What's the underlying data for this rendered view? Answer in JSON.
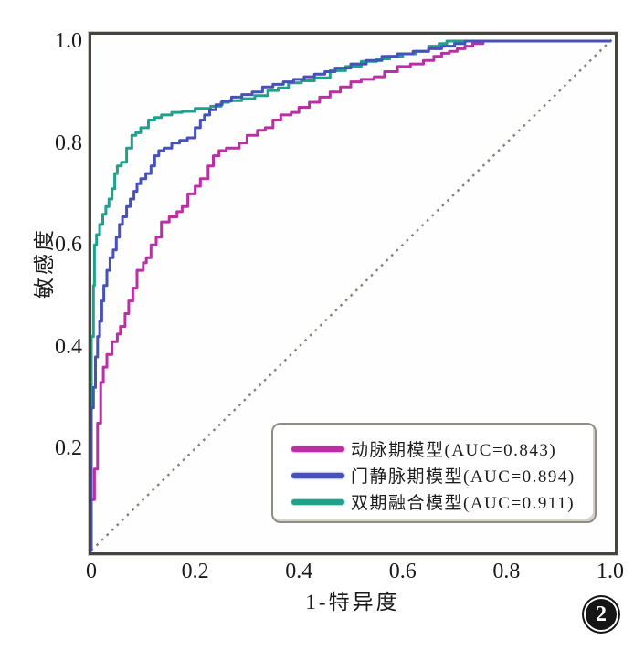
{
  "figure": {
    "number": "2"
  },
  "chart_data": {
    "type": "line",
    "subtype": "roc-curve",
    "title": "",
    "xlabel": "1-特异度",
    "ylabel": "敏感度",
    "xlim": [
      0,
      1.02
    ],
    "ylim": [
      0,
      1.02
    ],
    "grid": false,
    "legend_position": "inside-lower-right",
    "colors": {
      "frame": "#454441",
      "diagonal": "#8b8078",
      "background": "#ffffff",
      "tick_text": "#1a1a1a"
    },
    "x_ticks": [
      {
        "value": 0,
        "label": "0"
      },
      {
        "value": 0.2,
        "label": "0.2"
      },
      {
        "value": 0.4,
        "label": "0.4"
      },
      {
        "value": 0.6,
        "label": "0.6"
      },
      {
        "value": 0.8,
        "label": "0.8"
      },
      {
        "value": 1.0,
        "label": "1.0"
      }
    ],
    "y_ticks": [
      {
        "value": 0.2,
        "label": "0.2"
      },
      {
        "value": 0.4,
        "label": "0.4"
      },
      {
        "value": 0.6,
        "label": "0.6"
      },
      {
        "value": 0.8,
        "label": "0.8"
      },
      {
        "value": 1.0,
        "label": "1.0"
      }
    ],
    "reference_line": {
      "style": "dotted",
      "from": [
        0,
        0
      ],
      "to": [
        1,
        1
      ]
    },
    "draw_order": [
      0,
      2,
      1
    ],
    "series": [
      {
        "key": "arterial",
        "name": "动脉期模型(AUC=0.843)",
        "auc": 0.843,
        "color": "#bb2fa4",
        "points": [
          [
            0,
            0
          ],
          [
            0.006,
            0.1
          ],
          [
            0.012,
            0.16
          ],
          [
            0.018,
            0.25
          ],
          [
            0.023,
            0.33
          ],
          [
            0.03,
            0.36
          ],
          [
            0.04,
            0.385
          ],
          [
            0.05,
            0.41
          ],
          [
            0.056,
            0.425
          ],
          [
            0.065,
            0.44
          ],
          [
            0.072,
            0.465
          ],
          [
            0.08,
            0.49
          ],
          [
            0.088,
            0.515
          ],
          [
            0.1,
            0.55
          ],
          [
            0.106,
            0.565
          ],
          [
            0.115,
            0.575
          ],
          [
            0.125,
            0.6
          ],
          [
            0.135,
            0.615
          ],
          [
            0.15,
            0.645
          ],
          [
            0.165,
            0.655
          ],
          [
            0.175,
            0.665
          ],
          [
            0.186,
            0.675
          ],
          [
            0.2,
            0.7
          ],
          [
            0.21,
            0.715
          ],
          [
            0.225,
            0.73
          ],
          [
            0.235,
            0.755
          ],
          [
            0.246,
            0.775
          ],
          [
            0.26,
            0.785
          ],
          [
            0.285,
            0.79
          ],
          [
            0.3,
            0.8
          ],
          [
            0.32,
            0.815
          ],
          [
            0.335,
            0.825
          ],
          [
            0.35,
            0.83
          ],
          [
            0.365,
            0.845
          ],
          [
            0.385,
            0.855
          ],
          [
            0.4,
            0.86
          ],
          [
            0.42,
            0.87
          ],
          [
            0.44,
            0.88
          ],
          [
            0.46,
            0.89
          ],
          [
            0.48,
            0.9
          ],
          [
            0.5,
            0.91
          ],
          [
            0.52,
            0.92
          ],
          [
            0.545,
            0.925
          ],
          [
            0.565,
            0.93
          ],
          [
            0.59,
            0.94
          ],
          [
            0.615,
            0.95
          ],
          [
            0.64,
            0.955
          ],
          [
            0.66,
            0.962
          ],
          [
            0.675,
            0.97
          ],
          [
            0.69,
            0.976
          ],
          [
            0.705,
            0.98
          ],
          [
            0.72,
            0.985
          ],
          [
            0.735,
            0.99
          ],
          [
            0.755,
            0.995
          ],
          [
            0.775,
            1.0
          ],
          [
            1.0,
            1.0
          ]
        ]
      },
      {
        "key": "portal_venous",
        "name": "门静脉期模型(AUC=0.894)",
        "auc": 0.894,
        "color": "#4751bb",
        "points": [
          [
            0,
            0
          ],
          [
            0.004,
            0.28
          ],
          [
            0.008,
            0.32
          ],
          [
            0.012,
            0.38
          ],
          [
            0.016,
            0.42
          ],
          [
            0.02,
            0.45
          ],
          [
            0.024,
            0.49
          ],
          [
            0.03,
            0.52
          ],
          [
            0.036,
            0.55
          ],
          [
            0.042,
            0.575
          ],
          [
            0.048,
            0.59
          ],
          [
            0.054,
            0.615
          ],
          [
            0.06,
            0.64
          ],
          [
            0.068,
            0.655
          ],
          [
            0.075,
            0.675
          ],
          [
            0.082,
            0.69
          ],
          [
            0.088,
            0.705
          ],
          [
            0.095,
            0.72
          ],
          [
            0.105,
            0.73
          ],
          [
            0.115,
            0.74
          ],
          [
            0.122,
            0.755
          ],
          [
            0.13,
            0.775
          ],
          [
            0.14,
            0.785
          ],
          [
            0.155,
            0.79
          ],
          [
            0.17,
            0.8
          ],
          [
            0.185,
            0.805
          ],
          [
            0.2,
            0.81
          ],
          [
            0.21,
            0.83
          ],
          [
            0.218,
            0.845
          ],
          [
            0.228,
            0.855
          ],
          [
            0.24,
            0.865
          ],
          [
            0.252,
            0.875
          ],
          [
            0.27,
            0.882
          ],
          [
            0.29,
            0.89
          ],
          [
            0.31,
            0.895
          ],
          [
            0.33,
            0.9
          ],
          [
            0.35,
            0.91
          ],
          [
            0.37,
            0.915
          ],
          [
            0.39,
            0.92
          ],
          [
            0.41,
            0.925
          ],
          [
            0.43,
            0.93
          ],
          [
            0.45,
            0.935
          ],
          [
            0.47,
            0.94
          ],
          [
            0.5,
            0.947
          ],
          [
            0.53,
            0.955
          ],
          [
            0.56,
            0.962
          ],
          [
            0.59,
            0.97
          ],
          [
            0.62,
            0.975
          ],
          [
            0.65,
            0.98
          ],
          [
            0.675,
            0.985
          ],
          [
            0.7,
            0.99
          ],
          [
            0.72,
            0.995
          ],
          [
            0.74,
            1.0
          ],
          [
            1.0,
            1.0
          ]
        ]
      },
      {
        "key": "dual_phase",
        "name": "双期融合模型(AUC=0.911)",
        "auc": 0.911,
        "color": "#21a08c",
        "points": [
          [
            0,
            0
          ],
          [
            0.004,
            0.42
          ],
          [
            0.006,
            0.52
          ],
          [
            0.01,
            0.6
          ],
          [
            0.016,
            0.62
          ],
          [
            0.022,
            0.64
          ],
          [
            0.028,
            0.66
          ],
          [
            0.034,
            0.675
          ],
          [
            0.04,
            0.69
          ],
          [
            0.045,
            0.71
          ],
          [
            0.05,
            0.74
          ],
          [
            0.058,
            0.755
          ],
          [
            0.068,
            0.762
          ],
          [
            0.078,
            0.79
          ],
          [
            0.086,
            0.815
          ],
          [
            0.095,
            0.82
          ],
          [
            0.11,
            0.83
          ],
          [
            0.122,
            0.845
          ],
          [
            0.135,
            0.85
          ],
          [
            0.155,
            0.855
          ],
          [
            0.175,
            0.86
          ],
          [
            0.2,
            0.862
          ],
          [
            0.23,
            0.868
          ],
          [
            0.25,
            0.872
          ],
          [
            0.265,
            0.88
          ],
          [
            0.29,
            0.883
          ],
          [
            0.315,
            0.887
          ],
          [
            0.34,
            0.893
          ],
          [
            0.36,
            0.903
          ],
          [
            0.38,
            0.908
          ],
          [
            0.405,
            0.918
          ],
          [
            0.43,
            0.922
          ],
          [
            0.46,
            0.928
          ],
          [
            0.49,
            0.942
          ],
          [
            0.52,
            0.95
          ],
          [
            0.55,
            0.96
          ],
          [
            0.575,
            0.965
          ],
          [
            0.6,
            0.97
          ],
          [
            0.625,
            0.975
          ],
          [
            0.65,
            0.98
          ],
          [
            0.67,
            0.99
          ],
          [
            0.685,
            0.995
          ],
          [
            0.7,
            1.0
          ],
          [
            1.0,
            1.0
          ]
        ]
      }
    ]
  }
}
